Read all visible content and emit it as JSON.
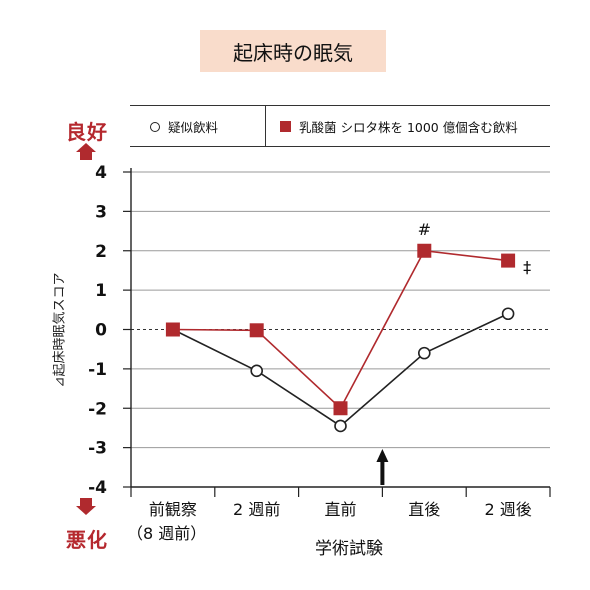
{
  "title": "起床時の眠気",
  "legend": {
    "items": [
      {
        "label": "疑似飲料",
        "marker": "open-circle"
      },
      {
        "label": "乳酸菌 シロタ株を 1000 億個含む飲料",
        "marker": "red-square"
      }
    ]
  },
  "direction_labels": {
    "good": "良好",
    "bad": "悪化"
  },
  "colors": {
    "accent": "#b02a2e",
    "title_bg": "#f9dccb",
    "series_placebo": "#222222"
  },
  "chart_data": {
    "type": "line",
    "title": "起床時の眠気",
    "ylabel": "⊿起床時眠気スコア",
    "xlabel": "学術試験",
    "ylim": [
      -4,
      4
    ],
    "yticks": [
      4,
      3,
      2,
      1,
      0,
      -1,
      -2,
      -3,
      -4
    ],
    "categories": [
      "前観察",
      "2 週前",
      "直前",
      "直後",
      "2 週後"
    ],
    "category_sublabel": "（8 週前）",
    "grid": true,
    "legend_position": "top",
    "series": [
      {
        "name": "疑似飲料",
        "values": [
          0,
          -1.05,
          -2.45,
          -0.6,
          0.4
        ],
        "marker": "circle"
      },
      {
        "name": "乳酸菌 シロタ株を 1000 億個含む飲料",
        "values": [
          0,
          -0.02,
          -2.0,
          2.0,
          1.75
        ],
        "marker": "square"
      }
    ],
    "annotations": [
      {
        "text": "#",
        "category": "直後"
      },
      {
        "text": "‡",
        "category": "2 週後"
      }
    ],
    "intervention_marker": {
      "category_between": [
        "直前",
        "直後"
      ],
      "symbol": "up-arrow"
    }
  }
}
